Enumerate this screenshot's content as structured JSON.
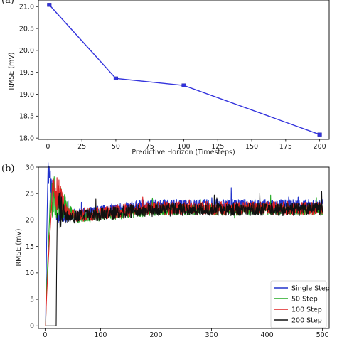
{
  "panel_labels": [
    "(a)",
    "(b)"
  ],
  "chart_data": [
    {
      "type": "line",
      "panel": "(a)",
      "xlabel": "Predictive Horizon (Timesteps)",
      "ylabel": "RMSE (mV)",
      "x": [
        1,
        50,
        100,
        200
      ],
      "values": [
        21.04,
        19.36,
        19.2,
        18.08
      ],
      "error": [
        0.03,
        0.03,
        0.03,
        0.03
      ],
      "xlim": [
        -7,
        207
      ],
      "ylim": [
        17.97,
        21.15
      ],
      "xticks": [
        0,
        25,
        50,
        75,
        100,
        125,
        150,
        175,
        200
      ],
      "yticks": [
        18.0,
        18.5,
        19.0,
        19.5,
        20.0,
        20.5,
        21.0
      ],
      "color": "#3333dd",
      "grid": false
    },
    {
      "type": "line",
      "panel": "(b)",
      "xlabel": "",
      "ylabel": "RMSE (mV)",
      "xlim": [
        -12,
        512
      ],
      "ylim": [
        -0.5,
        30
      ],
      "xticks": [
        0,
        100,
        200,
        300,
        400,
        500
      ],
      "yticks": [
        0,
        5,
        10,
        15,
        20,
        25,
        30
      ],
      "legend": "bottom-right",
      "grid": false,
      "series": [
        {
          "name": "Single Step",
          "color": "#2233cc",
          "start_x": 1,
          "rise_at": 1,
          "peak": {
            "x": 5,
            "y": 29
          },
          "settle": {
            "x": 20,
            "y": 22.5
          },
          "plateau": {
            "start": 20.5,
            "end": 22.8,
            "amplitude": 1.1
          }
        },
        {
          "name": "50 Step",
          "color": "#22aa22",
          "start_x": 1,
          "rise_at": 1,
          "peak": {
            "x": 10,
            "y": 25
          },
          "settle": {
            "x": 55,
            "y": 20.5
          },
          "plateau": {
            "start": 20.3,
            "end": 21.9,
            "amplitude": 1.0
          }
        },
        {
          "name": "100 Step",
          "color": "#dd2222",
          "start_x": 1,
          "rise_at": 1,
          "peak": {
            "x": 14,
            "y": 27
          },
          "settle": {
            "x": 40,
            "y": 21
          },
          "plateau": {
            "start": 20.8,
            "end": 22.2,
            "amplitude": 1.3
          }
        },
        {
          "name": "200 Step",
          "color": "#111111",
          "start_x": 1,
          "rise_at": 20,
          "peak": {
            "x": 22,
            "y": 22
          },
          "settle": {
            "x": 40,
            "y": 21
          },
          "plateau": {
            "start": 20.5,
            "end": 22.0,
            "amplitude": 1.2
          }
        }
      ]
    }
  ]
}
